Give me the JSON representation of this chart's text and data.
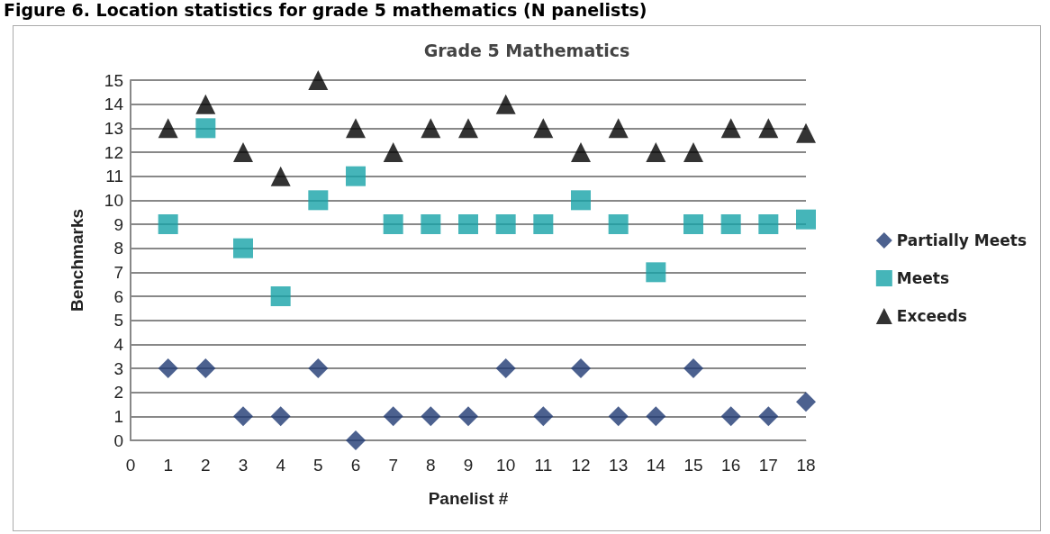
{
  "chart_data": {
    "type": "scatter",
    "title": "Grade 5 Mathematics",
    "xlabel": "Panelist #",
    "ylabel": "Benchmarks",
    "annotations": [
      "Figure 6. Location statistics for grade 5 mathematics (N panelists)"
    ],
    "x": [
      1,
      2,
      3,
      4,
      5,
      6,
      7,
      8,
      9,
      10,
      11,
      12,
      13,
      14,
      15,
      16,
      17,
      18
    ],
    "series": [
      {
        "name": "Partially Meets",
        "color": "#1f3a73",
        "marker": "diamond",
        "values": [
          3,
          3,
          1,
          1,
          3,
          0,
          1,
          1,
          1,
          3,
          1,
          3,
          1,
          1,
          3,
          1,
          1,
          1.6
        ]
      },
      {
        "name": "Meets",
        "color": "#17a2a8",
        "marker": "square",
        "values": [
          9,
          13,
          8,
          6,
          10,
          11,
          9,
          9,
          9,
          9,
          9,
          10,
          9,
          7,
          9,
          9,
          9,
          9.2
        ]
      },
      {
        "name": "Exceeds",
        "color": "#000000",
        "marker": "triangle",
        "values": [
          13,
          14,
          12,
          11,
          15,
          13,
          12,
          13,
          13,
          14,
          13,
          12,
          13,
          12,
          12,
          13,
          13,
          12.8
        ]
      }
    ],
    "xlim": [
      0,
      18
    ],
    "xticks": [
      0,
      1,
      2,
      3,
      4,
      5,
      6,
      7,
      8,
      9,
      10,
      11,
      12,
      13,
      14,
      15,
      16,
      17,
      18
    ],
    "ylim": [
      0,
      15
    ],
    "yticks": [
      0,
      1,
      2,
      3,
      4,
      5,
      6,
      7,
      8,
      9,
      10,
      11,
      12,
      13,
      14,
      15
    ],
    "grid": "y",
    "legend": "right"
  }
}
